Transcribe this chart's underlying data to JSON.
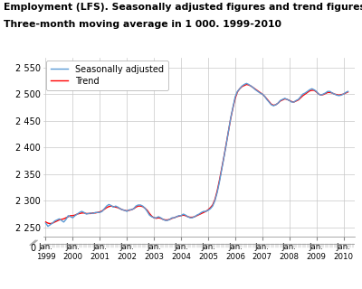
{
  "title_line1": "Employment (LFS). Seasonally adjusted figures and trend figures.",
  "title_line2": "Three-month moving average in 1 000. 1999-2010",
  "yticks": [
    2250,
    2300,
    2350,
    2400,
    2450,
    2500,
    2550
  ],
  "ytick_labels": [
    "2 250",
    "2 300",
    "2 350",
    "2 400",
    "2 450",
    "2 500",
    "2 550"
  ],
  "ylim": [
    2232,
    2568
  ],
  "xtick_labels": [
    "Jan.\n1999",
    "Jan.\n2000",
    "Jan.\n2001",
    "Jan.\n2002",
    "Jan.\n2003",
    "Jan.\n2004",
    "Jan.\n2005",
    "Jan.\n2006",
    "Jan.\n2007",
    "Jan.\n2008",
    "Jan.\n2009",
    "Jan.\n2010"
  ],
  "sa_color": "#5b9bd5",
  "trend_color": "#ff0000",
  "legend_sa": "Seasonally adjusted",
  "legend_trend": "Trend",
  "background_color": "#ffffff",
  "grid_color": "#c8c8c8",
  "sa_data": [
    2258,
    2252,
    2255,
    2258,
    2262,
    2264,
    2266,
    2263,
    2260,
    2265,
    2272,
    2270,
    2268,
    2272,
    2275,
    2278,
    2280,
    2278,
    2275,
    2276,
    2277,
    2276,
    2278,
    2278,
    2278,
    2280,
    2285,
    2290,
    2293,
    2291,
    2288,
    2290,
    2288,
    2285,
    2283,
    2282,
    2280,
    2283,
    2283,
    2285,
    2290,
    2292,
    2292,
    2290,
    2286,
    2280,
    2273,
    2270,
    2268,
    2268,
    2270,
    2268,
    2265,
    2263,
    2263,
    2265,
    2268,
    2268,
    2270,
    2272,
    2272,
    2275,
    2273,
    2270,
    2268,
    2268,
    2270,
    2273,
    2275,
    2278,
    2280,
    2280,
    2282,
    2285,
    2290,
    2300,
    2315,
    2335,
    2358,
    2380,
    2405,
    2430,
    2455,
    2475,
    2495,
    2505,
    2510,
    2515,
    2518,
    2520,
    2518,
    2515,
    2512,
    2508,
    2505,
    2502,
    2500,
    2496,
    2490,
    2485,
    2480,
    2478,
    2480,
    2483,
    2488,
    2490,
    2492,
    2490,
    2488,
    2485,
    2485,
    2488,
    2490,
    2495,
    2500,
    2502,
    2505,
    2508,
    2510,
    2508,
    2505,
    2500,
    2498,
    2500,
    2502,
    2505,
    2505,
    2502,
    2500,
    2498,
    2497,
    2498,
    2500,
    2503,
    2505
  ],
  "trend_data": [
    2260,
    2258,
    2257,
    2258,
    2260,
    2262,
    2264,
    2265,
    2266,
    2268,
    2270,
    2272,
    2272,
    2273,
    2275,
    2276,
    2277,
    2277,
    2276,
    2276,
    2276,
    2277,
    2277,
    2278,
    2279,
    2281,
    2284,
    2287,
    2289,
    2290,
    2289,
    2288,
    2287,
    2285,
    2283,
    2282,
    2281,
    2282,
    2283,
    2285,
    2288,
    2290,
    2290,
    2289,
    2286,
    2282,
    2276,
    2271,
    2268,
    2267,
    2268,
    2267,
    2265,
    2264,
    2264,
    2265,
    2267,
    2268,
    2270,
    2271,
    2272,
    2273,
    2272,
    2270,
    2269,
    2269,
    2270,
    2272,
    2274,
    2276,
    2278,
    2280,
    2283,
    2287,
    2292,
    2302,
    2318,
    2338,
    2360,
    2382,
    2406,
    2430,
    2454,
    2474,
    2492,
    2504,
    2510,
    2514,
    2516,
    2518,
    2517,
    2515,
    2512,
    2509,
    2506,
    2503,
    2500,
    2496,
    2491,
    2486,
    2481,
    2479,
    2480,
    2483,
    2487,
    2489,
    2491,
    2490,
    2488,
    2486,
    2485,
    2487,
    2489,
    2493,
    2497,
    2500,
    2503,
    2506,
    2507,
    2507,
    2504,
    2500,
    2498,
    2499,
    2501,
    2503,
    2503,
    2502,
    2500,
    2499,
    2498,
    2499,
    2500,
    2502,
    2504
  ]
}
